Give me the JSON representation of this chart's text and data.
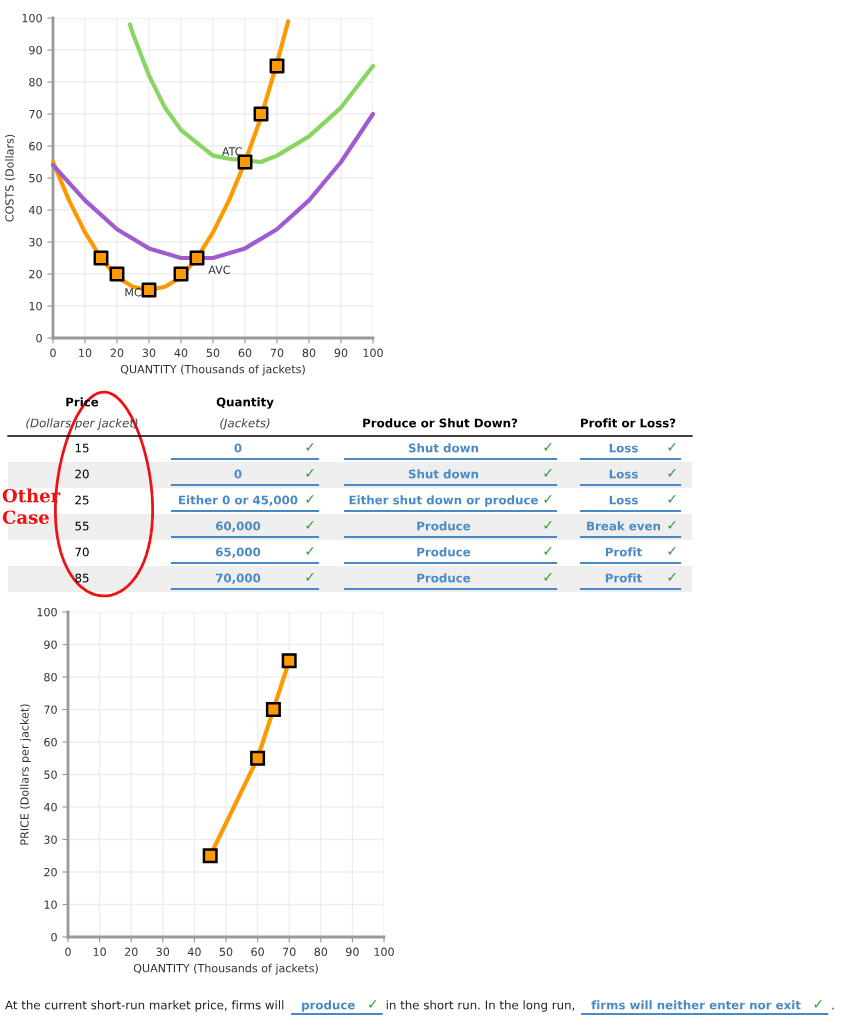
{
  "chart_data": [
    {
      "type": "line",
      "xlabel": "QUANTITY (Thousands of jackets)",
      "ylabel": "COSTS (Dollars)",
      "xlim": [
        0,
        100
      ],
      "ylim": [
        0,
        100
      ],
      "xticks": [
        0,
        10,
        20,
        30,
        40,
        50,
        60,
        70,
        80,
        90,
        100
      ],
      "yticks": [
        0,
        10,
        20,
        30,
        40,
        50,
        60,
        70,
        80,
        90,
        100
      ],
      "grid": true,
      "marker": "none",
      "line_style": "solid",
      "series": [
        {
          "color": "#ff9900",
          "x": [
            0,
            5,
            10,
            15,
            20,
            25,
            30,
            35,
            40,
            45,
            50,
            55,
            60,
            65,
            70,
            73.5
          ],
          "values": [
            55,
            43,
            33,
            25,
            19,
            16,
            15,
            16,
            19,
            25,
            33,
            43,
            55,
            69,
            86,
            99
          ]
        },
        {
          "color": "#88d660",
          "x": [
            24,
            25,
            30,
            35,
            40,
            45,
            50,
            55,
            65,
            70,
            80,
            90,
            100
          ],
          "values": [
            98,
            95,
            82,
            72,
            65,
            61,
            57,
            56,
            55,
            57,
            63,
            72,
            85
          ]
        },
        {
          "color": "#a05bd0",
          "x": [
            0,
            10,
            20,
            30,
            40,
            50,
            60,
            70,
            80,
            90,
            100
          ],
          "values": [
            54,
            43,
            34,
            28,
            25,
            25,
            28,
            34,
            43,
            55,
            70
          ]
        },
        {
          "type": "scatter",
          "marker": "square",
          "color": "#ff9900",
          "x": [
            15,
            20,
            30,
            40,
            45,
            60,
            65,
            70
          ],
          "values": [
            25,
            20,
            15,
            20,
            25,
            55,
            70,
            85
          ]
        }
      ],
      "annotations": [
        "ATC",
        "AVC",
        "MC"
      ]
    },
    {
      "type": "other",
      "categories": [
        "Price",
        "Quantity",
        "Produce or Shut Down?",
        "Profit or Loss?"
      ],
      "annotations": [
        "(Dollars per jacket)",
        "(Jackets)",
        "15",
        "0 ✓",
        "Shut down ✓",
        "Loss ✓",
        "20",
        "0 ✓",
        "Shut down ✓",
        "Loss ✓",
        "25",
        "Either 0 or 45,000 ✓",
        "Either shut down or produce ✓",
        "Loss ✓",
        "55",
        "60,000 ✓",
        "Produce ✓",
        "Break even ✓",
        "70",
        "65,000 ✓",
        "Produce ✓",
        "Profit ✓",
        "85",
        "70,000 ✓",
        "Produce ✓",
        "Profit ✓",
        "Other\nCase",
        "At the current short-run market price, firms will",
        "produce ✓",
        "in the short run. In the long run,",
        "firms will neither enter nor exit ✓",
        "."
      ]
    },
    {
      "type": "line",
      "xlabel": "QUANTITY (Thousands of jackets)",
      "ylabel": "PRICE (Dollars per jacket)",
      "xlim": [
        0,
        100
      ],
      "ylim": [
        0,
        100
      ],
      "xticks": [
        0,
        10,
        20,
        30,
        40,
        50,
        60,
        70,
        80,
        90,
        100
      ],
      "yticks": [
        0,
        10,
        20,
        30,
        40,
        50,
        60,
        70,
        80,
        90,
        100
      ],
      "grid": true,
      "marker": "square",
      "line_style": "solid",
      "series": [
        {
          "color": "#ff9900",
          "x": [
            45,
            60,
            65,
            70
          ],
          "values": [
            25,
            55,
            70,
            85
          ]
        }
      ]
    }
  ]
}
